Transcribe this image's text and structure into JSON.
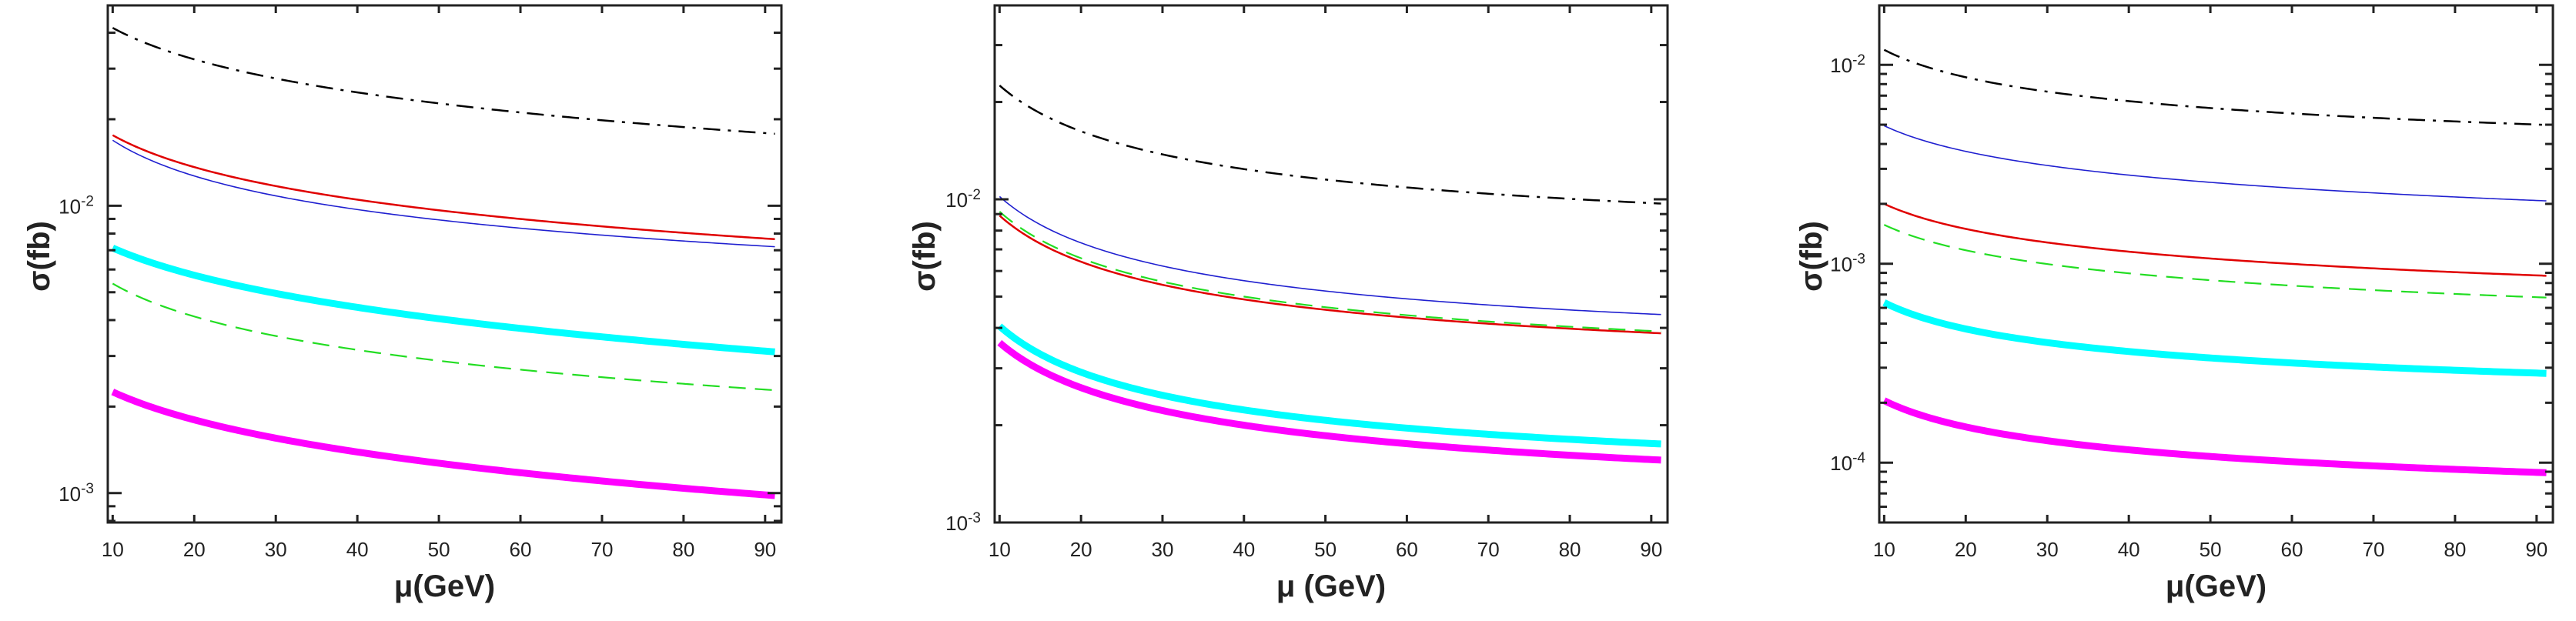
{
  "chart_data": [
    {
      "type": "line",
      "title": "",
      "xlabel": "μ(GeV)",
      "ylabel": "σ(fb)",
      "yscale": "log",
      "xlim": [
        9.4,
        92
      ],
      "ylim": [
        0.00079,
        0.0498
      ],
      "x_ticks": [
        10,
        20,
        30,
        40,
        50,
        60,
        70,
        80,
        90
      ],
      "y_ticks": [
        {
          "base": "10",
          "exp": "-2",
          "value": 0.01
        },
        {
          "base": "10",
          "exp": "-3",
          "value": 0.001
        }
      ],
      "x": [
        10,
        40,
        91.2
      ],
      "series": [
        {
          "name": "black-dashdot",
          "color": "#000000",
          "style": "dashdot",
          "values": [
            0.0416,
            0.0248,
            0.0178
          ]
        },
        {
          "name": "red-solid",
          "color": "#e00000",
          "style": "solid",
          "values": [
            0.0176,
            0.0105,
            0.00765
          ]
        },
        {
          "name": "blue-thin",
          "color": "#2020d0",
          "style": "thin",
          "values": [
            0.0169,
            0.0097,
            0.0072
          ]
        },
        {
          "name": "cyan-thick",
          "color": "#00ffff",
          "style": "thick",
          "values": [
            0.00713,
            0.00443,
            0.0031
          ]
        },
        {
          "name": "green-dashed",
          "color": "#22dd22",
          "style": "dashed",
          "values": [
            0.00536,
            0.00315,
            0.00228
          ]
        },
        {
          "name": "magenta-thick",
          "color": "#ff00ff",
          "style": "thick",
          "values": [
            0.00225,
            0.00139,
            0.00098
          ]
        }
      ]
    },
    {
      "type": "line",
      "title": "",
      "xlabel": "μ (GeV)",
      "ylabel": "σ(fb)",
      "yscale": "log",
      "xlim": [
        9.4,
        92
      ],
      "ylim": [
        0.001,
        0.0398
      ],
      "x_ticks": [
        10,
        20,
        30,
        40,
        50,
        60,
        70,
        80,
        90
      ],
      "y_ticks": [
        {
          "base": "10",
          "exp": "-2",
          "value": 0.01
        },
        {
          "base": "10",
          "exp": "-3",
          "value": 0.001
        }
      ],
      "x": [
        10,
        40,
        91.2
      ],
      "series": [
        {
          "name": "black-dashdot",
          "color": "#000000",
          "style": "dashdot",
          "values": [
            0.0225,
            0.0124,
            0.0097
          ]
        },
        {
          "name": "blue-thin",
          "color": "#2020d0",
          "style": "thin",
          "values": [
            0.0102,
            0.0056,
            0.0044
          ]
        },
        {
          "name": "red-solid",
          "color": "#e00000",
          "style": "solid",
          "values": [
            0.0089,
            0.0049,
            0.00385
          ]
        },
        {
          "name": "green-dashed",
          "color": "#22dd22",
          "style": "dashed",
          "values": [
            0.00916,
            0.005,
            0.0039
          ]
        },
        {
          "name": "cyan-thick",
          "color": "#00ffff",
          "style": "thick",
          "values": [
            0.00405,
            0.00223,
            0.00175
          ]
        },
        {
          "name": "magenta-thick",
          "color": "#ff00ff",
          "style": "thick",
          "values": [
            0.0036,
            0.002,
            0.00156
          ]
        }
      ]
    },
    {
      "type": "line",
      "title": "",
      "xlabel": "μ(GeV)",
      "ylabel": "σ(fb)",
      "yscale": "log",
      "xlim": [
        9.4,
        92
      ],
      "ylim": [
        5e-05,
        0.0199
      ],
      "x_ticks": [
        10,
        20,
        30,
        40,
        50,
        60,
        70,
        80,
        90
      ],
      "y_ticks": [
        {
          "base": "10",
          "exp": "-2",
          "value": 0.01
        },
        {
          "base": "10",
          "exp": "-3",
          "value": 0.001
        },
        {
          "base": "10",
          "exp": "-4",
          "value": 0.0001
        }
      ],
      "x": [
        10,
        40,
        91.2
      ],
      "series": [
        {
          "name": "black-dashdot",
          "color": "#000000",
          "style": "dashdot",
          "values": [
            0.0119,
            0.00657,
            0.00499
          ]
        },
        {
          "name": "blue-thin",
          "color": "#2020d0",
          "style": "thin",
          "values": [
            0.00494,
            0.00279,
            0.00207
          ]
        },
        {
          "name": "red-solid",
          "color": "#e00000",
          "style": "solid",
          "values": [
            0.002,
            0.00115,
            0.00087
          ]
        },
        {
          "name": "green-dashed",
          "color": "#22dd22",
          "style": "dashed",
          "values": [
            0.00157,
            0.000895,
            0.000676
          ]
        },
        {
          "name": "cyan-thick",
          "color": "#00ffff",
          "style": "thick",
          "values": [
            0.000638,
            0.000362,
            0.000281
          ]
        },
        {
          "name": "magenta-thick",
          "color": "#ff00ff",
          "style": "thick",
          "values": [
            0.000205,
            0.000116,
            8.9e-05
          ]
        }
      ]
    }
  ]
}
